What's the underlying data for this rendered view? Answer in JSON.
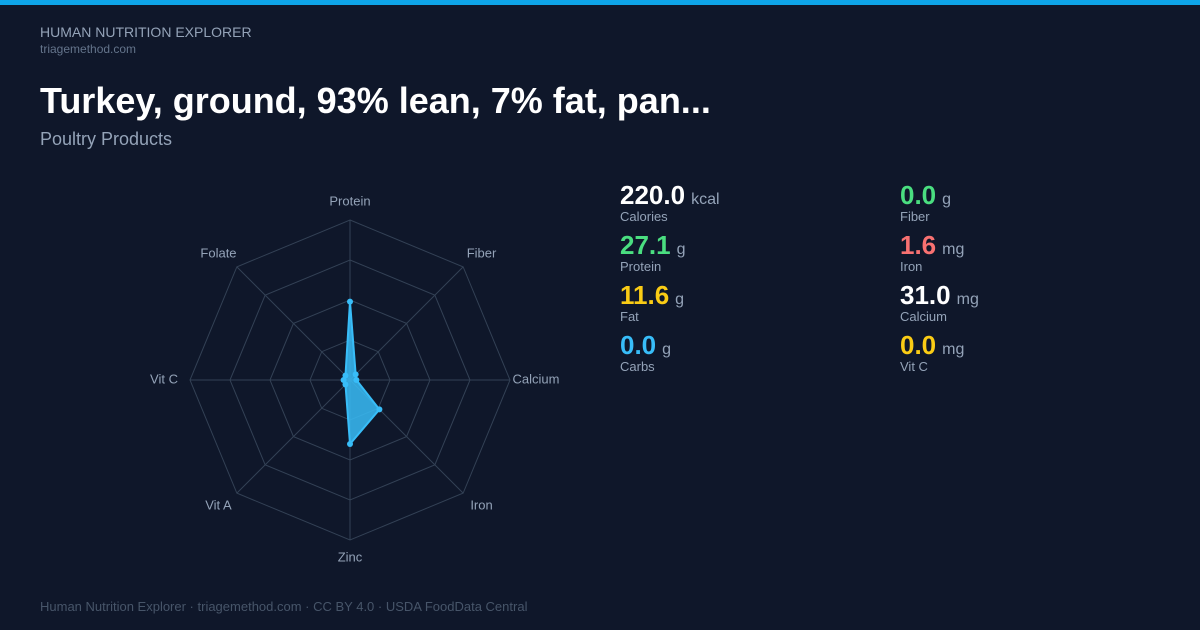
{
  "header": {
    "brand": "HUMAN NUTRITION EXPLORER",
    "site": "triagemethod.com",
    "title": "Turkey, ground, 93% lean, 7% fat, pan...",
    "subtitle": "Poultry Products"
  },
  "chart_data": {
    "type": "radar",
    "categories": [
      "Protein",
      "Fiber",
      "Calcium",
      "Iron",
      "Zinc",
      "Vit A",
      "Vit C",
      "Folate"
    ],
    "values": [
      49,
      5,
      4,
      26,
      40,
      4,
      4,
      4
    ],
    "color": "#38bdf8",
    "rlim": [
      0,
      100
    ],
    "rticks": [
      25,
      50,
      75,
      100
    ],
    "grid": true
  },
  "stats": [
    {
      "value": "220.0",
      "unit": "kcal",
      "label": "Calories",
      "color": "#ffffff"
    },
    {
      "value": "27.1",
      "unit": "g",
      "label": "Protein",
      "color": "#4ade80"
    },
    {
      "value": "11.6",
      "unit": "g",
      "label": "Fat",
      "color": "#facc15"
    },
    {
      "value": "0.0",
      "unit": "g",
      "label": "Carbs",
      "color": "#38bdf8"
    },
    {
      "value": "0.0",
      "unit": "g",
      "label": "Fiber",
      "color": "#4ade80"
    },
    {
      "value": "1.6",
      "unit": "mg",
      "label": "Iron",
      "color": "#f87171"
    },
    {
      "value": "31.0",
      "unit": "mg",
      "label": "Calcium",
      "color": "#ffffff"
    },
    {
      "value": "0.0",
      "unit": "mg",
      "label": "Vit C",
      "color": "#facc15"
    }
  ],
  "footer": "Human Nutrition Explorer · triagemethod.com · CC BY 4.0 · USDA FoodData Central"
}
